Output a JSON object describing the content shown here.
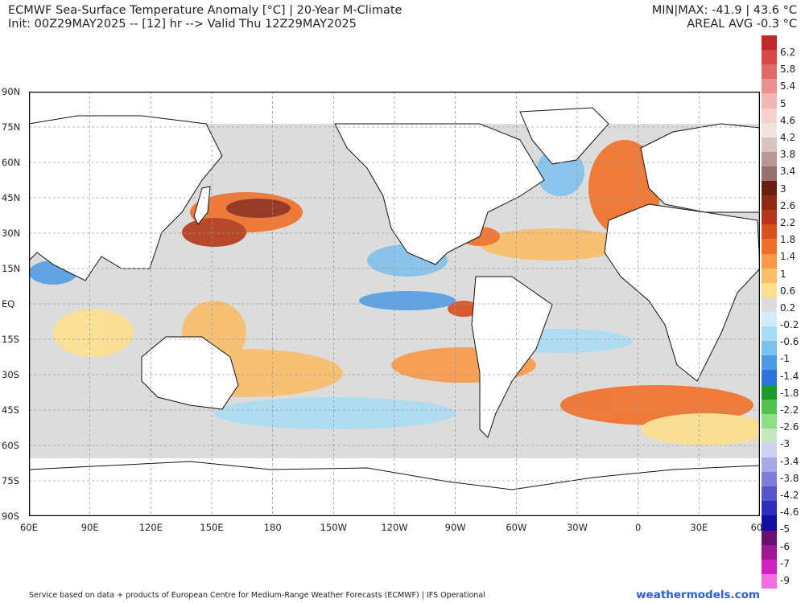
{
  "header": {
    "title": "ECMWF Sea-Surface Temperature Anomaly [°C] | 20-Year M-Climate",
    "init": "Init: 00Z29MAY2025 -- [12] hr --> Valid Thu 12Z29MAY2025",
    "minmax": "MIN|MAX: -41.9 | 43.6 °C",
    "areal": "AREAL AVG -0.3 °C"
  },
  "axes": {
    "lat_labels": [
      "90N",
      "75N",
      "60N",
      "45N",
      "30N",
      "15N",
      "EQ",
      "15S",
      "30S",
      "45S",
      "60S",
      "75S",
      "90S"
    ],
    "lon_labels": [
      "60E",
      "90E",
      "120E",
      "150E",
      "180",
      "150W",
      "120W",
      "90W",
      "60W",
      "30W",
      "0",
      "30E",
      "60"
    ]
  },
  "colorbar": {
    "labels": [
      "6.2",
      "5.8",
      "5.4",
      "5",
      "4.6",
      "4.2",
      "3.8",
      "3.4",
      "3",
      "2.6",
      "2.2",
      "1.8",
      "1.4",
      "1",
      "0.6",
      "0.2",
      "-0.2",
      "-0.6",
      "-1",
      "-1.4",
      "-1.8",
      "-2.2",
      "-2.6",
      "-3",
      "-3.4",
      "-3.8",
      "-4.2",
      "-4.6",
      "-5",
      "-6",
      "-7",
      "-9"
    ],
    "colors": [
      "#c0282a",
      "#d84848",
      "#e06a6a",
      "#eb9090",
      "#f3b6b6",
      "#f7d0d0",
      "#f0e4e0",
      "#d8c4c0",
      "#b89894",
      "#987070",
      "#6a2010",
      "#8e2a14",
      "#b43818",
      "#d8501c",
      "#f07028",
      "#f89a48",
      "#fbbf6a",
      "#fde08e",
      "#dcdcdc",
      "#cfeefa",
      "#a8dcf4",
      "#7cc0ee",
      "#4c9ae4",
      "#2c72d8",
      "#1a9a2a",
      "#52c24e",
      "#8ee088",
      "#c6e8c0",
      "#d0d0f0",
      "#a8a8e8",
      "#7e7ed8",
      "#5656c8",
      "#2e2eb8",
      "#1010a0",
      "#6a1070",
      "#a01894",
      "#d020c0",
      "#f070e0"
    ]
  },
  "footer": {
    "credit": "Service based on data + products of European Centre for Medium-Range Weather Forecasts (ECMWF) | IFS Operational",
    "brand": "weathermodels.com"
  }
}
